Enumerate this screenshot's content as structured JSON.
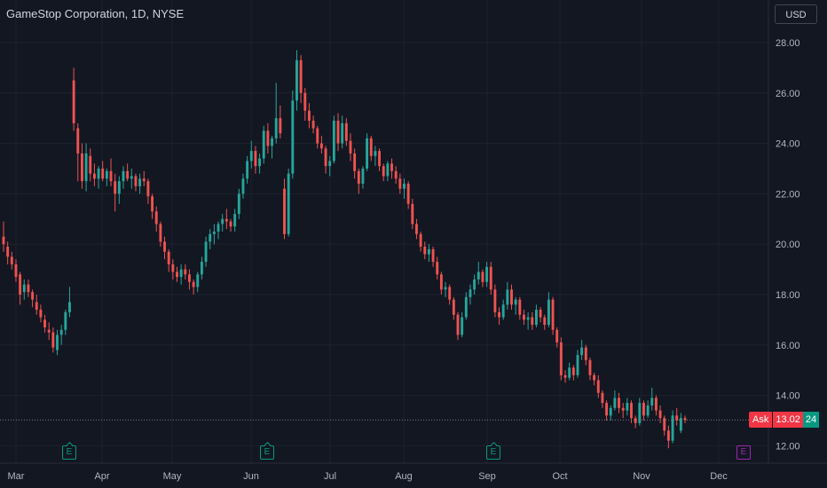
{
  "header": {
    "title": "GameStop Corporation, 1D, NYSE",
    "currency_button": "USD"
  },
  "price_line": {
    "label": "Ask",
    "price": "13.02",
    "countdown_fragment": "24",
    "value": 13.02
  },
  "events": [
    {
      "label": "E",
      "month": "Mar",
      "kind": "earnings"
    },
    {
      "label": "E",
      "month": "Jun",
      "kind": "earnings"
    },
    {
      "label": "E",
      "month": "Sep",
      "kind": "earnings"
    },
    {
      "label": "E",
      "month": "Dec",
      "kind": "upcoming-earnings"
    }
  ],
  "colors": {
    "background": "#131722",
    "up": "#26a69a",
    "down": "#ef5350",
    "grid": "#1e222d",
    "text": "#b2b5be",
    "ask": "#f23645",
    "event": "#089981",
    "event_future": "#9c27b0"
  },
  "chart_data": {
    "type": "candlestick",
    "title": "GameStop Corporation, 1D, NYSE",
    "y_axis": {
      "ticks": [
        "28.00",
        "26.00",
        "24.00",
        "22.00",
        "20.00",
        "18.00",
        "16.00",
        "14.00",
        "12.00"
      ],
      "ylim": [
        11.3,
        28.6
      ],
      "position": "right"
    },
    "x_axis": {
      "ticks": [
        "Mar",
        "Apr",
        "May",
        "Jun",
        "Jul",
        "Aug",
        "Sep",
        "Oct",
        "Nov",
        "Dec"
      ]
    },
    "grid": true,
    "note": "daily OHLC estimated from chart; each candle [open, high, low, close]",
    "ohlc": [
      [
        20.3,
        20.9,
        19.7,
        20.0
      ],
      [
        19.9,
        20.1,
        19.2,
        19.5
      ],
      [
        19.5,
        19.7,
        19.0,
        19.2
      ],
      [
        19.2,
        19.4,
        18.5,
        18.7
      ],
      [
        18.8,
        18.9,
        17.6,
        18.0
      ],
      [
        18.1,
        18.6,
        17.8,
        18.4
      ],
      [
        18.4,
        18.6,
        17.9,
        18.1
      ],
      [
        18.1,
        18.2,
        17.5,
        17.8
      ],
      [
        17.7,
        18.0,
        17.2,
        17.4
      ],
      [
        17.4,
        17.6,
        16.9,
        17.1
      ],
      [
        17.0,
        17.2,
        16.5,
        16.7
      ],
      [
        16.6,
        16.9,
        16.2,
        16.5
      ],
      [
        16.5,
        16.7,
        15.7,
        15.9
      ],
      [
        15.8,
        16.6,
        15.6,
        16.4
      ],
      [
        16.4,
        16.8,
        16.0,
        16.6
      ],
      [
        16.6,
        17.4,
        16.4,
        17.3
      ],
      [
        17.3,
        18.3,
        17.1,
        17.7
      ],
      [
        26.5,
        27.0,
        24.5,
        24.8
      ],
      [
        24.6,
        24.8,
        22.5,
        23.6
      ],
      [
        23.6,
        24.0,
        22.2,
        22.5
      ],
      [
        22.5,
        24.0,
        22.1,
        23.6
      ],
      [
        23.5,
        23.8,
        22.5,
        22.8
      ],
      [
        22.8,
        23.2,
        22.3,
        22.6
      ],
      [
        22.6,
        23.1,
        22.2,
        23.0
      ],
      [
        23.0,
        23.3,
        22.5,
        22.6
      ],
      [
        22.6,
        23.0,
        22.3,
        22.9
      ],
      [
        22.9,
        23.4,
        22.3,
        22.5
      ],
      [
        22.5,
        22.8,
        21.3,
        22.0
      ],
      [
        22.0,
        22.7,
        21.6,
        22.5
      ],
      [
        22.5,
        23.1,
        22.2,
        22.9
      ],
      [
        22.9,
        23.2,
        22.5,
        22.6
      ],
      [
        22.6,
        23.0,
        22.2,
        22.7
      ],
      [
        22.7,
        22.8,
        22.1,
        22.3
      ],
      [
        22.3,
        22.8,
        22.0,
        22.6
      ],
      [
        22.6,
        22.9,
        22.3,
        22.5
      ],
      [
        22.5,
        22.6,
        21.6,
        21.9
      ],
      [
        21.9,
        22.0,
        21.0,
        21.3
      ],
      [
        21.3,
        21.5,
        20.5,
        20.8
      ],
      [
        20.8,
        20.9,
        19.9,
        20.1
      ],
      [
        20.1,
        20.3,
        19.4,
        19.7
      ],
      [
        19.7,
        19.8,
        18.9,
        19.2
      ],
      [
        19.2,
        19.4,
        18.6,
        18.9
      ],
      [
        18.9,
        19.1,
        18.5,
        18.7
      ],
      [
        18.7,
        19.2,
        18.4,
        19.0
      ],
      [
        19.0,
        19.2,
        18.6,
        18.8
      ],
      [
        18.8,
        19.0,
        18.2,
        18.5
      ],
      [
        18.5,
        18.6,
        18.0,
        18.3
      ],
      [
        18.3,
        18.9,
        18.1,
        18.8
      ],
      [
        18.8,
        19.5,
        18.6,
        19.3
      ],
      [
        19.3,
        20.3,
        19.1,
        20.1
      ],
      [
        20.1,
        20.6,
        19.8,
        20.4
      ],
      [
        20.4,
        20.8,
        20.0,
        20.5
      ],
      [
        20.5,
        20.9,
        20.2,
        20.8
      ],
      [
        20.8,
        21.2,
        20.5,
        21.0
      ],
      [
        21.0,
        21.4,
        20.6,
        20.9
      ],
      [
        20.9,
        21.0,
        20.5,
        20.7
      ],
      [
        20.7,
        21.4,
        20.5,
        21.2
      ],
      [
        21.2,
        22.2,
        21.0,
        22.0
      ],
      [
        22.0,
        22.8,
        21.8,
        22.6
      ],
      [
        22.6,
        23.5,
        22.4,
        23.3
      ],
      [
        23.3,
        24.1,
        23.0,
        23.7
      ],
      [
        23.7,
        23.9,
        22.8,
        23.1
      ],
      [
        23.1,
        23.6,
        22.8,
        23.4
      ],
      [
        23.4,
        24.7,
        23.2,
        24.5
      ],
      [
        24.5,
        24.8,
        23.6,
        23.9
      ],
      [
        23.9,
        24.3,
        23.4,
        24.2
      ],
      [
        24.2,
        26.4,
        24.0,
        25.0
      ],
      [
        25.0,
        25.5,
        24.2,
        24.4
      ],
      [
        22.2,
        22.6,
        20.2,
        20.4
      ],
      [
        20.4,
        23.0,
        20.3,
        22.8
      ],
      [
        22.8,
        26.1,
        22.6,
        25.7
      ],
      [
        25.7,
        27.7,
        25.3,
        27.3
      ],
      [
        27.3,
        27.5,
        25.6,
        26.0
      ],
      [
        26.0,
        26.2,
        24.9,
        25.3
      ],
      [
        25.3,
        25.6,
        24.6,
        24.9
      ],
      [
        24.9,
        25.1,
        24.4,
        24.6
      ],
      [
        24.6,
        24.7,
        23.8,
        24.0
      ],
      [
        24.0,
        24.3,
        23.6,
        23.8
      ],
      [
        23.8,
        23.9,
        22.8,
        23.1
      ],
      [
        23.1,
        23.5,
        22.7,
        23.3
      ],
      [
        23.3,
        25.1,
        23.2,
        24.9
      ],
      [
        24.9,
        25.2,
        23.7,
        24.0
      ],
      [
        24.0,
        25.1,
        23.8,
        24.8
      ],
      [
        24.8,
        25.0,
        23.9,
        24.1
      ],
      [
        24.1,
        24.4,
        23.3,
        23.6
      ],
      [
        23.6,
        23.8,
        22.6,
        22.9
      ],
      [
        22.9,
        23.0,
        22.0,
        22.4
      ],
      [
        22.4,
        23.1,
        22.2,
        23.0
      ],
      [
        23.0,
        24.4,
        22.9,
        24.2
      ],
      [
        24.2,
        24.3,
        23.3,
        23.5
      ],
      [
        23.5,
        23.9,
        23.1,
        23.7
      ],
      [
        23.7,
        23.8,
        22.9,
        23.1
      ],
      [
        23.1,
        23.2,
        22.5,
        22.7
      ],
      [
        22.7,
        23.3,
        22.5,
        23.2
      ],
      [
        23.2,
        23.4,
        22.6,
        22.9
      ],
      [
        22.9,
        23.1,
        22.4,
        22.6
      ],
      [
        22.6,
        22.8,
        22.0,
        22.2
      ],
      [
        22.2,
        22.6,
        21.8,
        22.4
      ],
      [
        22.4,
        22.5,
        21.4,
        21.6
      ],
      [
        21.6,
        21.8,
        20.6,
        20.8
      ],
      [
        20.8,
        21.0,
        20.2,
        20.4
      ],
      [
        20.4,
        20.5,
        19.7,
        19.9
      ],
      [
        19.9,
        20.1,
        19.4,
        19.6
      ],
      [
        19.6,
        20.0,
        19.3,
        19.8
      ],
      [
        19.8,
        19.9,
        19.1,
        19.3
      ],
      [
        19.3,
        19.5,
        18.6,
        18.8
      ],
      [
        18.8,
        18.9,
        18.0,
        18.2
      ],
      [
        18.2,
        18.5,
        17.9,
        18.3
      ],
      [
        18.3,
        18.4,
        17.6,
        17.8
      ],
      [
        17.8,
        17.9,
        17.0,
        17.2
      ],
      [
        17.2,
        17.3,
        16.2,
        16.4
      ],
      [
        16.4,
        17.3,
        16.3,
        17.1
      ],
      [
        17.1,
        18.1,
        17.0,
        17.9
      ],
      [
        17.9,
        18.4,
        17.6,
        18.2
      ],
      [
        18.2,
        18.8,
        18.0,
        18.6
      ],
      [
        18.6,
        19.3,
        18.4,
        18.9
      ],
      [
        18.9,
        19.0,
        18.3,
        18.5
      ],
      [
        18.5,
        19.3,
        18.3,
        19.1
      ],
      [
        19.1,
        19.3,
        18.0,
        18.2
      ],
      [
        18.2,
        18.4,
        17.1,
        17.3
      ],
      [
        17.3,
        17.5,
        16.8,
        17.1
      ],
      [
        17.1,
        17.8,
        17.0,
        17.6
      ],
      [
        17.6,
        18.5,
        17.4,
        18.2
      ],
      [
        18.2,
        18.4,
        17.4,
        17.6
      ],
      [
        17.6,
        17.9,
        17.2,
        17.8
      ],
      [
        17.8,
        17.9,
        17.0,
        17.2
      ],
      [
        17.2,
        17.4,
        16.8,
        17.0
      ],
      [
        17.0,
        17.3,
        16.6,
        17.1
      ],
      [
        17.1,
        17.3,
        16.6,
        16.8
      ],
      [
        16.8,
        17.6,
        16.7,
        17.4
      ],
      [
        17.4,
        17.5,
        16.9,
        17.1
      ],
      [
        17.1,
        17.2,
        16.6,
        16.8
      ],
      [
        16.8,
        18.1,
        16.7,
        17.8
      ],
      [
        17.8,
        17.9,
        16.4,
        16.6
      ],
      [
        16.6,
        16.7,
        15.9,
        16.1
      ],
      [
        16.1,
        16.3,
        14.6,
        14.8
      ],
      [
        14.8,
        15.0,
        14.5,
        14.7
      ],
      [
        14.7,
        15.3,
        14.6,
        15.1
      ],
      [
        15.1,
        15.2,
        14.6,
        14.8
      ],
      [
        14.8,
        15.8,
        14.7,
        15.6
      ],
      [
        15.6,
        16.2,
        15.4,
        15.9
      ],
      [
        15.9,
        16.0,
        15.2,
        15.4
      ],
      [
        15.4,
        15.5,
        14.6,
        14.8
      ],
      [
        14.8,
        14.9,
        14.4,
        14.6
      ],
      [
        14.6,
        14.8,
        13.9,
        14.1
      ],
      [
        14.1,
        14.2,
        13.5,
        13.7
      ],
      [
        13.7,
        13.8,
        13.0,
        13.2
      ],
      [
        13.2,
        13.6,
        13.0,
        13.5
      ],
      [
        13.5,
        14.2,
        13.4,
        13.9
      ],
      [
        13.9,
        14.1,
        13.3,
        13.5
      ],
      [
        13.5,
        13.7,
        13.1,
        13.4
      ],
      [
        13.4,
        13.9,
        13.2,
        13.7
      ],
      [
        13.7,
        13.8,
        12.9,
        13.1
      ],
      [
        13.1,
        13.2,
        12.7,
        12.9
      ],
      [
        12.9,
        13.9,
        12.8,
        13.7
      ],
      [
        13.7,
        13.8,
        13.0,
        13.2
      ],
      [
        13.2,
        13.8,
        13.1,
        13.6
      ],
      [
        13.6,
        14.3,
        13.4,
        13.9
      ],
      [
        13.9,
        14.0,
        13.2,
        13.4
      ],
      [
        13.4,
        13.6,
        12.9,
        13.1
      ],
      [
        13.1,
        13.2,
        12.4,
        12.6
      ],
      [
        12.6,
        12.8,
        11.9,
        12.2
      ],
      [
        12.2,
        13.4,
        12.1,
        13.2
      ],
      [
        13.2,
        13.5,
        12.8,
        13.0
      ],
      [
        12.6,
        13.3,
        12.5,
        13.1
      ],
      [
        13.1,
        13.2,
        12.9,
        13.02
      ]
    ]
  }
}
